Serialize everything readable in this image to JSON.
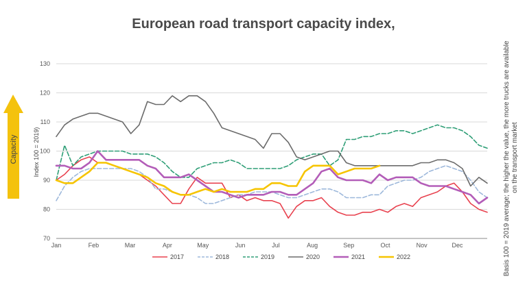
{
  "title": "European road transport capacity index,",
  "side_arrow_label": "Capacity",
  "note": "Basis 100 = 2019 average; the higher the value, the more trucks are available on the transport market",
  "colors": {
    "arrow": "#f4c20d",
    "grid": "#d9d9d9",
    "axis": "#888888"
  },
  "chart_data": {
    "type": "line",
    "ylabel": "Index 100 = 2019)",
    "ylim": [
      70,
      130
    ],
    "yticks": [
      70,
      80,
      90,
      100,
      110,
      120,
      130
    ],
    "xlim": [
      1,
      53
    ],
    "xticks": [
      {
        "label": "Jan",
        "week": 1
      },
      {
        "label": "Feb",
        "week": 5.5
      },
      {
        "label": "Mar",
        "week": 9.9
      },
      {
        "label": "Apr",
        "week": 14.4
      },
      {
        "label": "May",
        "week": 18.7
      },
      {
        "label": "Jun",
        "week": 23.2
      },
      {
        "label": "Jul",
        "week": 27.5
      },
      {
        "label": "Aug",
        "week": 31.9
      },
      {
        "label": "Sep",
        "week": 36.3
      },
      {
        "label": "Oct",
        "week": 40.7
      },
      {
        "label": "Nov",
        "week": 45.1
      },
      {
        "label": "Dec",
        "week": 49.4
      }
    ],
    "grid": "horizontal",
    "legend_position": "bottom",
    "series": [
      {
        "name": "2017",
        "color": "#e8414e",
        "dash": "solid",
        "width": 1.6,
        "values": [
          90,
          92,
          95,
          97,
          98,
          96,
          96,
          95,
          94,
          93,
          92,
          90,
          88,
          85,
          82,
          82,
          87,
          91,
          89,
          89,
          89,
          84,
          85,
          83,
          84,
          83,
          83,
          82,
          77,
          81,
          83,
          83,
          84,
          81,
          79,
          78,
          78,
          79,
          79,
          80,
          79,
          81,
          82,
          81,
          84,
          85,
          86,
          88,
          89,
          86,
          82,
          80,
          79
        ]
      },
      {
        "name": "2018",
        "color": "#9db8db",
        "dash": "6,3",
        "width": 1.6,
        "values": [
          83,
          88,
          91,
          93,
          94,
          94,
          94,
          94,
          94,
          94,
          93,
          91,
          87,
          87,
          86,
          85,
          85,
          84,
          82,
          82,
          83,
          84,
          85,
          85,
          86,
          86,
          86,
          85,
          84,
          84,
          85,
          86,
          87,
          87,
          86,
          84,
          84,
          84,
          85,
          85,
          88,
          89,
          90,
          90,
          91,
          93,
          94,
          95,
          94,
          93,
          90,
          86,
          84
        ]
      },
      {
        "name": "2019",
        "color": "#2e9e76",
        "dash": "6,3",
        "width": 1.6,
        "values": [
          90,
          102,
          95,
          98,
          99,
          100,
          100,
          100,
          100,
          99,
          99,
          99,
          98,
          96,
          93,
          91,
          91,
          94,
          95,
          96,
          96,
          97,
          96,
          94,
          94,
          94,
          94,
          94,
          95,
          97,
          98,
          99,
          99,
          95,
          97,
          104,
          104,
          105,
          105,
          106,
          106,
          107,
          107,
          106,
          107,
          108,
          109,
          108,
          108,
          107,
          105,
          102,
          101
        ]
      },
      {
        "name": "2020",
        "color": "#6b6b6b",
        "dash": "solid",
        "width": 1.6,
        "values": [
          105,
          109,
          111,
          112,
          113,
          113,
          112,
          111,
          110,
          106,
          109,
          117,
          116,
          116,
          119,
          117,
          119,
          119,
          117,
          113,
          108,
          107,
          106,
          105,
          104,
          101,
          106,
          106,
          103,
          98,
          97,
          98,
          99,
          100,
          100,
          96,
          95,
          95,
          95,
          95,
          95,
          95,
          95,
          95,
          96,
          96,
          97,
          97,
          96,
          94,
          88,
          91,
          89
        ]
      },
      {
        "name": "2021",
        "color": "#b35db8",
        "dash": "solid",
        "width": 2.6,
        "values": [
          95,
          95,
          94,
          94,
          96,
          100,
          97,
          97,
          97,
          97,
          97,
          95,
          94,
          91,
          91,
          91,
          92,
          90,
          88,
          86,
          86,
          85,
          84,
          85,
          85,
          85,
          86,
          86,
          85,
          85,
          87,
          89,
          93,
          94,
          91,
          90,
          90,
          90,
          89,
          92,
          90,
          91,
          91,
          91,
          89,
          88,
          88,
          88,
          87,
          86,
          85,
          82,
          84
        ]
      },
      {
        "name": "2022",
        "color": "#f6c400",
        "dash": "solid",
        "width": 2.6,
        "values": [
          90,
          89,
          89,
          91,
          93,
          96,
          96,
          95,
          94,
          93,
          92,
          91,
          89,
          88,
          86,
          85,
          85,
          86,
          87,
          86,
          87,
          86,
          86,
          86,
          87,
          87,
          89,
          89,
          88,
          88,
          93,
          95,
          95,
          95,
          92,
          93,
          94,
          94,
          94,
          95
        ]
      }
    ]
  }
}
